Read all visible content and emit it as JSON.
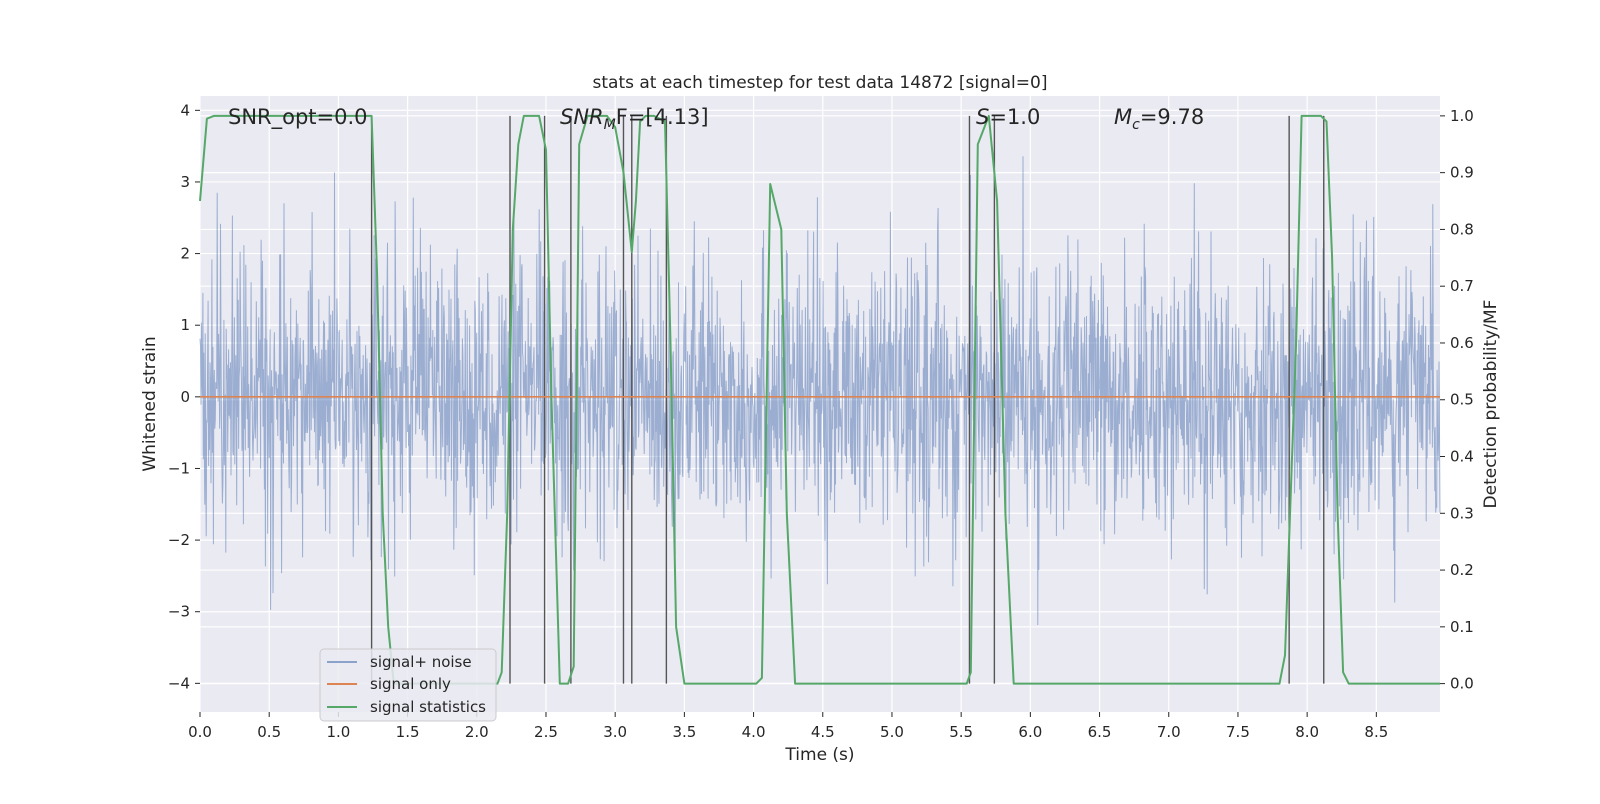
{
  "chart_data": {
    "type": "line",
    "title": "stats at each timestep for test data 14872 [signal=0]",
    "xlabel": "Time (s)",
    "ylabel": "Whitened strain",
    "y2label": "Detection probability/MF",
    "xlim": [
      0,
      8.96
    ],
    "ylim": [
      -4.4,
      4.2
    ],
    "y2lim": [
      -0.05,
      1.035
    ],
    "x_ticks": [
      0.0,
      0.5,
      1.0,
      1.5,
      2.0,
      2.5,
      3.0,
      3.5,
      4.0,
      4.5,
      5.0,
      5.5,
      6.0,
      6.5,
      7.0,
      7.5,
      8.0,
      8.5
    ],
    "x_tick_labels": [
      "0.0",
      "0.5",
      "1.0",
      "1.5",
      "2.0",
      "2.5",
      "3.0",
      "3.5",
      "4.0",
      "4.5",
      "5.0",
      "5.5",
      "6.0",
      "6.5",
      "7.0",
      "7.5",
      "8.0",
      "8.5"
    ],
    "y_ticks": [
      -4,
      -3,
      -2,
      -1,
      0,
      1,
      2,
      3,
      4
    ],
    "y_tick_labels": [
      "−4",
      "−3",
      "−2",
      "−1",
      "0",
      "1",
      "2",
      "3",
      "4"
    ],
    "y2_ticks": [
      0.0,
      0.1,
      0.2,
      0.3,
      0.4,
      0.5,
      0.6,
      0.7,
      0.8,
      0.9,
      1.0
    ],
    "y2_tick_labels": [
      "0.0",
      "0.1",
      "0.2",
      "0.3",
      "0.4",
      "0.5",
      "0.6",
      "0.7",
      "0.8",
      "0.9",
      "1.0"
    ],
    "grid": true,
    "legend_position": "lower-left",
    "colors": {
      "background": "#eaeaf2",
      "grid": "#ffffff",
      "noise": "#4c72b0",
      "signal_only": "#dd8452",
      "statistics": "#55a868",
      "vlines": "#555555"
    },
    "annotations": {
      "snr_opt": "SNR_opt=0.0",
      "snr_mf_base": "SNR",
      "snr_mf_sub": "M",
      "snr_mf_rest": "F=[4.13]",
      "s_var": "S",
      "s_rest": "=1.0",
      "mc_base": "M",
      "mc_sub": "c",
      "mc_rest": "=9.78"
    },
    "series": [
      {
        "name": "signal+ noise",
        "axis": "left",
        "style": "noise",
        "amplitude_envelope": {
          "typical_abs": 1.5,
          "max": 3.45,
          "min": -3.8
        }
      },
      {
        "name": "signal only",
        "axis": "left",
        "x": [
          0,
          8.96
        ],
        "y": [
          0,
          0
        ]
      },
      {
        "name": "signal statistics",
        "axis": "right",
        "x": [
          0.0,
          0.05,
          0.1,
          1.0,
          1.24,
          1.28,
          1.32,
          1.36,
          1.4,
          2.15,
          2.18,
          2.22,
          2.26,
          2.3,
          2.34,
          2.45,
          2.5,
          2.54,
          2.6,
          2.66,
          2.7,
          2.74,
          2.8,
          2.94,
          3.0,
          3.06,
          3.12,
          3.15,
          3.18,
          3.22,
          3.28,
          3.36,
          3.4,
          3.44,
          3.5,
          4.02,
          4.06,
          4.12,
          4.2,
          4.24,
          4.3,
          5.54,
          5.57,
          5.62,
          5.7,
          5.76,
          5.82,
          5.88,
          5.92,
          7.8,
          7.84,
          7.92,
          7.96,
          8.04,
          8.1,
          8.14,
          8.18,
          8.22,
          8.26,
          8.3,
          8.4,
          8.96
        ],
        "y": [
          0.85,
          0.995,
          1.0,
          1.0,
          1.0,
          0.72,
          0.3,
          0.1,
          0.0,
          0.0,
          0.02,
          0.3,
          0.8,
          0.95,
          1.0,
          1.0,
          0.94,
          0.5,
          0.0,
          0.0,
          0.03,
          0.95,
          1.0,
          1.0,
          0.98,
          0.9,
          0.76,
          0.85,
          0.99,
          1.0,
          1.0,
          0.99,
          0.6,
          0.1,
          0.0,
          0.0,
          0.01,
          0.88,
          0.8,
          0.3,
          0.0,
          0.0,
          0.02,
          0.95,
          1.0,
          0.85,
          0.3,
          0.0,
          0.0,
          0.0,
          0.05,
          0.6,
          1.0,
          1.0,
          1.0,
          0.99,
          0.75,
          0.3,
          0.02,
          0.0,
          0.0,
          0.0
        ]
      }
    ],
    "vlines_x": [
      1.24,
      2.24,
      2.49,
      2.68,
      3.06,
      3.12,
      3.37,
      5.56,
      5.74,
      7.87,
      8.12
    ]
  }
}
